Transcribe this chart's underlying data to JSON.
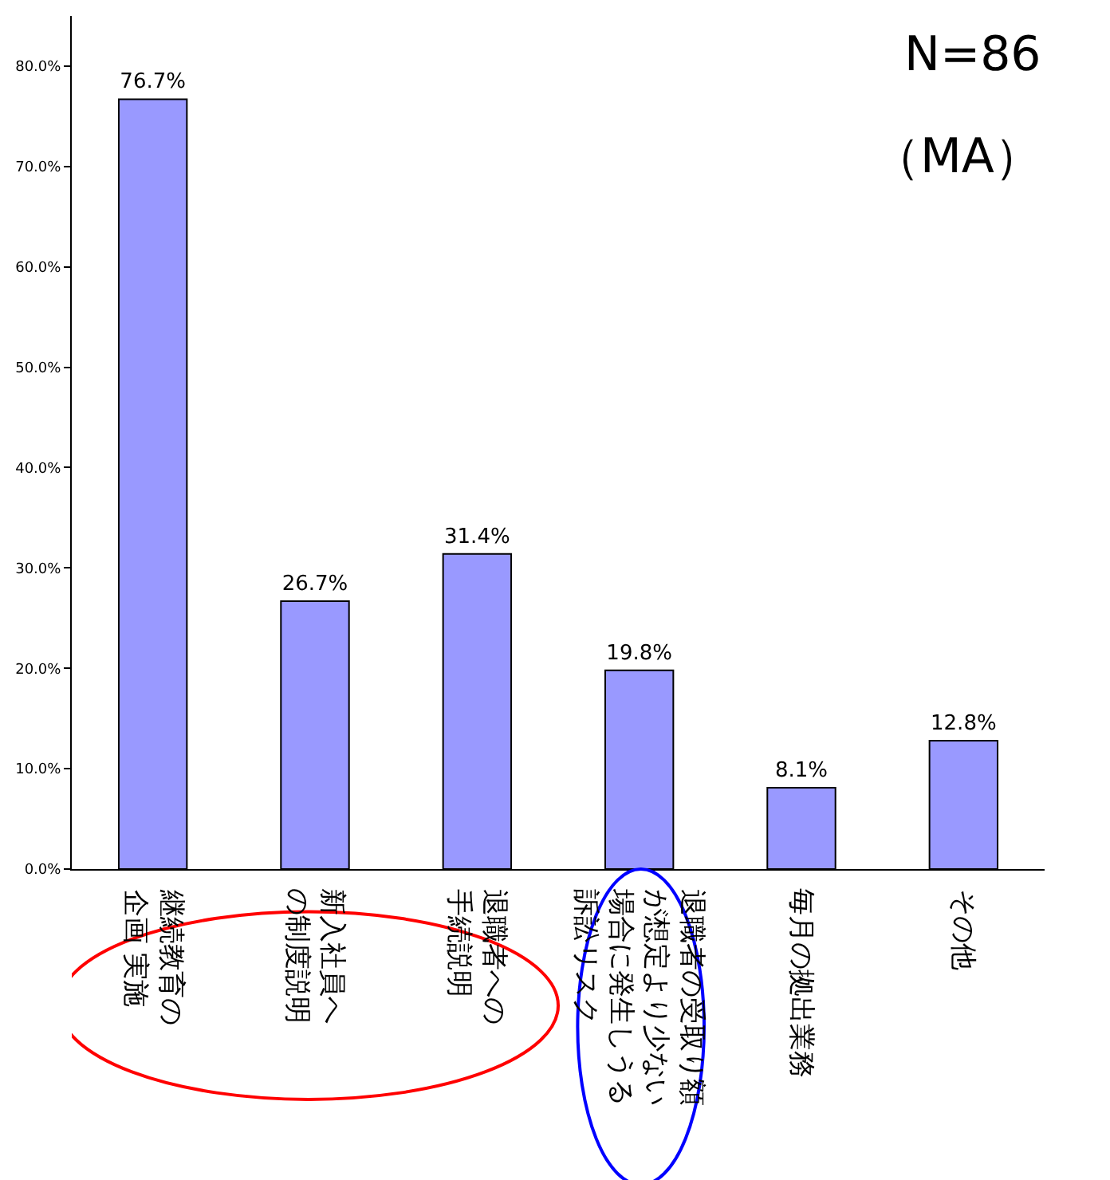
{
  "chart_data": {
    "type": "bar",
    "categories": [
      "継続教育の企画 実施",
      "新入社員への制度説明",
      "退職者への手続説明",
      "退職者の受取り額が想定より少ない場合に発生しうる訴訟リスク",
      "毎月の拠出業務",
      "その他"
    ],
    "values": [
      76.7,
      26.7,
      31.4,
      19.8,
      8.1,
      12.8
    ],
    "value_labels": [
      "76.7%",
      "26.7%",
      "31.4%",
      "19.8%",
      "8.1%",
      "12.8%"
    ],
    "color": "#9999ff",
    "ylim": [
      0,
      85
    ],
    "yticks": [
      {
        "value": 0,
        "label": "0.0%"
      },
      {
        "value": 10,
        "label": "10.0%"
      },
      {
        "value": 20,
        "label": "20.0%"
      },
      {
        "value": 30,
        "label": "30.0%"
      },
      {
        "value": 40,
        "label": "40.0%"
      },
      {
        "value": 50,
        "label": "50.0%"
      },
      {
        "value": 60,
        "label": "60.0%"
      },
      {
        "value": 70,
        "label": "70.0%"
      },
      {
        "value": 80,
        "label": "80.0%"
      }
    ],
    "annotations": [
      "N=86",
      "（MA）"
    ],
    "legend": false
  }
}
